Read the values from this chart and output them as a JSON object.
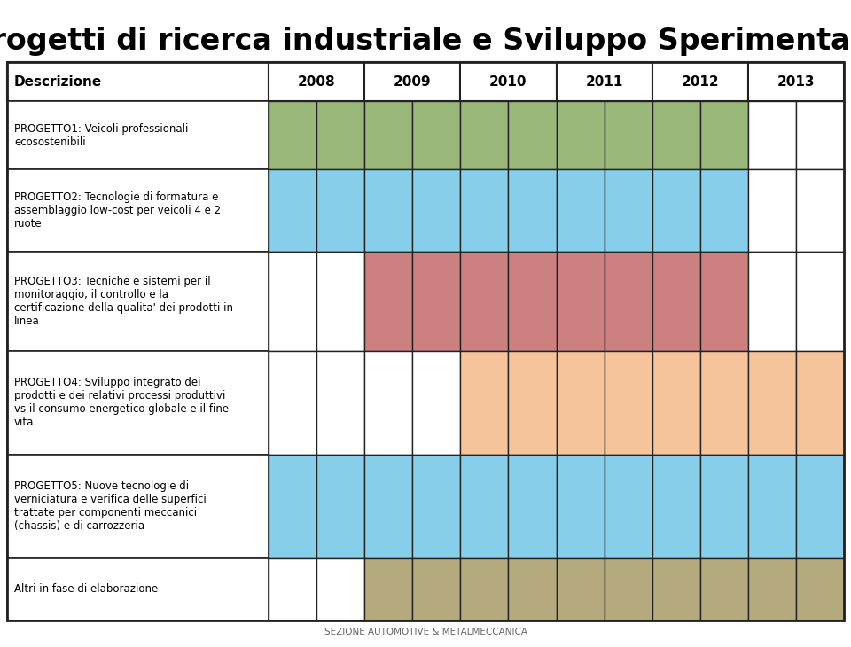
{
  "title": "Progetti di ricerca industriale e Sviluppo Sperimentale",
  "title_fontsize": 24,
  "subtitle_bottom": "SEZIONE AUTOMOTIVE & METALMECCANICA",
  "header_row": [
    "Descrizione",
    "2008",
    "2009",
    "2010",
    "2011",
    "2012",
    "2013"
  ],
  "rows": [
    {
      "label": "PROGETTO1: Veicoli professionali\necosostenibili",
      "cells": [
        0,
        1,
        1,
        1,
        1,
        1,
        0
      ]
    },
    {
      "label": "PROGETTO2: Tecnologie di formatura e\nassemblaggio low-cost per veicoli 4 e 2\nruote",
      "cells": [
        0,
        1,
        1,
        1,
        1,
        1,
        0
      ],
      "color_key": "blue"
    },
    {
      "label": "PROGETTO3: Tecniche e sistemi per il\nmonitoraggio, il controllo e la\ncertificazione della qualita' dei prodotti in\nlinea",
      "cells": [
        0,
        0,
        1,
        1,
        1,
        1,
        0
      ],
      "color_key": "red"
    },
    {
      "label": "PROGETTO4: Sviluppo integrato dei\nprodotti e dei relativi processi produttivi\nvs il consumo energetico globale e il fine\nvita",
      "cells": [
        0,
        0,
        0,
        1,
        1,
        1,
        1
      ],
      "color_key": "orange"
    },
    {
      "label": "PROGETTO5: Nuove tecnologie di\nverniciatura e verifica delle superfici\ntrattate per componenti meccanici\n(chassis) e di carrozzeria",
      "cells": [
        0,
        1,
        1,
        1,
        1,
        1,
        1
      ],
      "color_key": "blue"
    },
    {
      "label": "Altri in fase di elaborazione",
      "cells": [
        0,
        0,
        1,
        1,
        1,
        1,
        1
      ],
      "color_key": "tan"
    }
  ],
  "row_colors": [
    "green",
    "blue",
    "red",
    "orange",
    "blue",
    "tan"
  ],
  "colors": {
    "green": "#9ab87a",
    "blue": "#87ceeb",
    "red": "#cc8080",
    "orange": "#f5c49a",
    "tan": "#b5aa7e",
    "white": "#ffffff"
  },
  "border_color": "#222222",
  "subcols_per_year": 2,
  "background_color": "#ffffff"
}
